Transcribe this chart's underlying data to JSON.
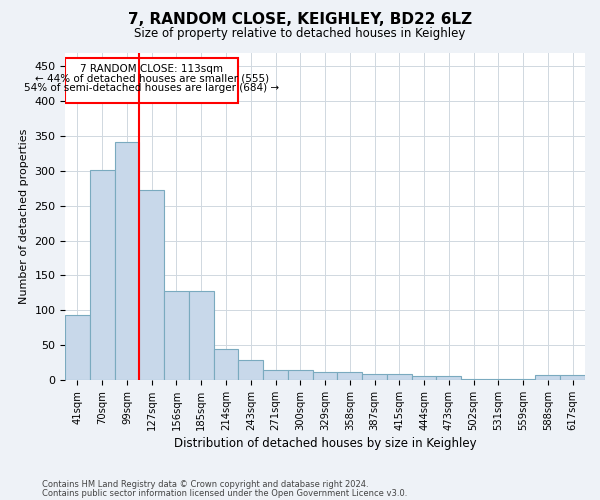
{
  "title": "7, RANDOM CLOSE, KEIGHLEY, BD22 6LZ",
  "subtitle": "Size of property relative to detached houses in Keighley",
  "xlabel": "Distribution of detached houses by size in Keighley",
  "ylabel": "Number of detached properties",
  "categories": [
    "41sqm",
    "70sqm",
    "99sqm",
    "127sqm",
    "156sqm",
    "185sqm",
    "214sqm",
    "243sqm",
    "271sqm",
    "300sqm",
    "329sqm",
    "358sqm",
    "387sqm",
    "415sqm",
    "444sqm",
    "473sqm",
    "502sqm",
    "531sqm",
    "559sqm",
    "588sqm",
    "617sqm"
  ],
  "values": [
    93,
    302,
    341,
    272,
    128,
    128,
    45,
    28,
    14,
    14,
    12,
    12,
    8,
    8,
    6,
    5,
    2,
    2,
    1,
    7,
    7
  ],
  "bar_color": "#c8d8ea",
  "bar_edge_color": "#7aaabf",
  "annotation_line1": "7 RANDOM CLOSE: 113sqm",
  "annotation_line2": "← 44% of detached houses are smaller (555)",
  "annotation_line3": "54% of semi-detached houses are larger (684) →",
  "red_line_x": 2.5,
  "ylim": [
    0,
    470
  ],
  "yticks": [
    0,
    50,
    100,
    150,
    200,
    250,
    300,
    350,
    400,
    450
  ],
  "footnote1": "Contains HM Land Registry data © Crown copyright and database right 2024.",
  "footnote2": "Contains public sector information licensed under the Open Government Licence v3.0.",
  "bg_color": "#eef2f7",
  "plot_bg_color": "#ffffff",
  "grid_color": "#d0d8e0"
}
